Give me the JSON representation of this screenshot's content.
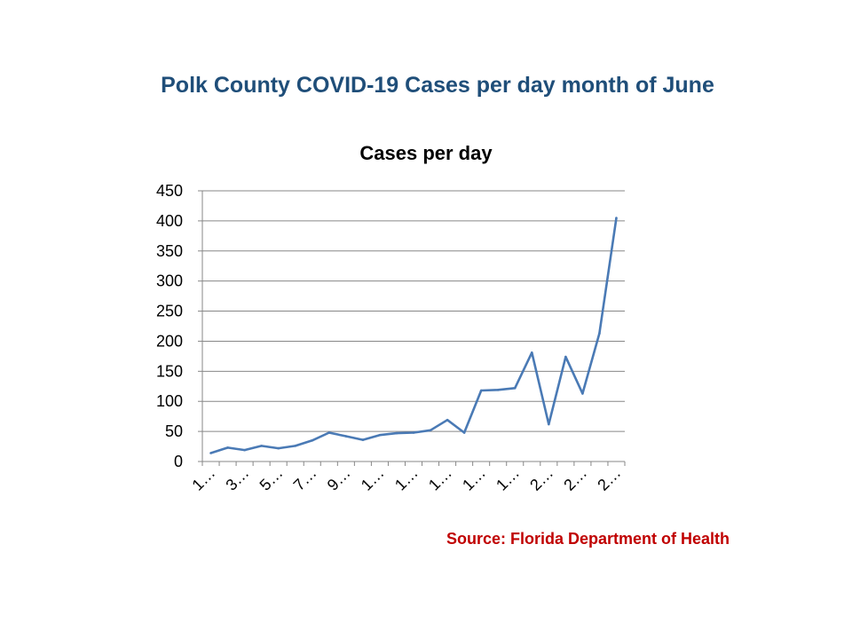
{
  "slide_title": "Polk County COVID-19 Cases per day month of June",
  "source_note": "Source: Florida Department of Health",
  "chart_data": {
    "type": "line",
    "title": "Cases per day",
    "xlabel": "",
    "ylabel": "",
    "ylim": [
      0,
      450
    ],
    "y_ticks": [
      0,
      50,
      100,
      150,
      200,
      250,
      300,
      350,
      400,
      450
    ],
    "grid": true,
    "legend": "none",
    "x_tick_labels": [
      "1…",
      "3…",
      "5…",
      "7…",
      "9…",
      "1…",
      "1…",
      "1…",
      "1…",
      "1…",
      "2…",
      "2…",
      "2…"
    ],
    "series": [
      {
        "color": "#4a7ab5",
        "values": [
          14,
          23,
          19,
          26,
          22,
          26,
          35,
          48,
          42,
          36,
          44,
          47,
          48,
          52,
          69,
          48,
          118,
          119,
          122,
          181,
          62,
          174,
          113,
          213,
          405
        ]
      }
    ]
  }
}
